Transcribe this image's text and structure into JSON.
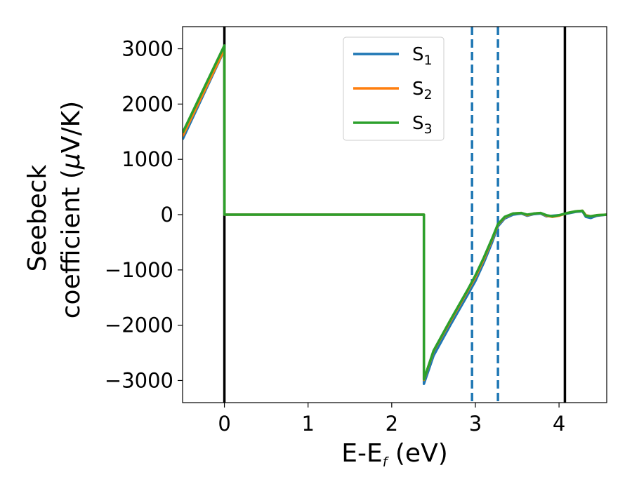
{
  "chart_data": {
    "type": "line",
    "xlabel": "E-E",
    "xlabel_sub": "f",
    "xlabel_unit": " (eV)",
    "ylabel_line1": "Seebeck",
    "ylabel_line2": "coefficient  (",
    "ylabel_mu": "μ",
    "ylabel_unit": "V/K)",
    "xlim": [
      -0.5,
      4.57
    ],
    "ylim": [
      -3400,
      3400
    ],
    "xticks": [
      0,
      1,
      2,
      3,
      4
    ],
    "yticks": [
      3000,
      2000,
      1000,
      0,
      -1000,
      -2000,
      -3000
    ],
    "xtick_labels": [
      "0",
      "1",
      "2",
      "3",
      "4"
    ],
    "ytick_labels": [
      "3000",
      "2000",
      "1000",
      "0",
      "−1000",
      "−2000",
      "−3000"
    ],
    "grid": false,
    "legend_placement": "top-center",
    "vlines_solid": [
      0.0,
      4.07
    ],
    "vlines_dashed": [
      2.96,
      3.27
    ],
    "series": [
      {
        "name": "S",
        "sub": "1",
        "color": "#1f77b4",
        "x": [
          -0.5,
          0.0,
          0.001,
          2.38,
          2.385,
          2.385,
          2.5,
          2.7,
          2.9,
          3.0,
          3.1,
          3.2,
          3.27,
          3.35,
          3.45,
          3.55,
          3.62,
          3.7,
          3.78,
          3.85,
          3.92,
          4.0,
          4.1,
          4.2,
          4.28,
          4.32,
          4.38,
          4.45,
          4.57
        ],
        "y": [
          1360,
          2980,
          0,
          0,
          0,
          -3060,
          -2550,
          -2000,
          -1470,
          -1200,
          -870,
          -500,
          -210,
          -70,
          0,
          20,
          -20,
          10,
          20,
          -30,
          -20,
          -10,
          20,
          50,
          60,
          -40,
          -60,
          -20,
          0
        ]
      },
      {
        "name": "S",
        "sub": "2",
        "color": "#ff7f0e",
        "x": [
          -0.5,
          0.0,
          0.001,
          2.38,
          2.385,
          2.385,
          2.5,
          2.7,
          2.9,
          3.0,
          3.1,
          3.2,
          3.27,
          3.35,
          3.45,
          3.55,
          3.62,
          3.7,
          3.78,
          3.85,
          3.92,
          4.0,
          4.1,
          4.2,
          4.28,
          4.32,
          4.38,
          4.45,
          4.57
        ],
        "y": [
          1420,
          2990,
          0,
          0,
          0,
          -2990,
          -2470,
          -1930,
          -1400,
          -1130,
          -810,
          -450,
          -180,
          -50,
          20,
          30,
          -10,
          20,
          30,
          -20,
          -40,
          -20,
          30,
          60,
          70,
          -10,
          -30,
          -10,
          0
        ]
      },
      {
        "name": "S",
        "sub": "3",
        "color": "#2ca02c",
        "x": [
          -0.5,
          0.0,
          0.001,
          2.38,
          2.385,
          2.385,
          2.5,
          2.7,
          2.9,
          3.0,
          3.1,
          3.2,
          3.27,
          3.35,
          3.45,
          3.55,
          3.62,
          3.7,
          3.78,
          3.85,
          3.92,
          4.0,
          4.1,
          4.2,
          4.28,
          4.32,
          4.38,
          4.45,
          4.57
        ],
        "y": [
          1480,
          3060,
          0,
          0,
          0,
          -2980,
          -2460,
          -1910,
          -1380,
          -1100,
          -780,
          -430,
          -170,
          -40,
          20,
          30,
          0,
          20,
          30,
          -10,
          -30,
          -10,
          30,
          60,
          70,
          -20,
          -30,
          -10,
          0
        ]
      }
    ]
  }
}
